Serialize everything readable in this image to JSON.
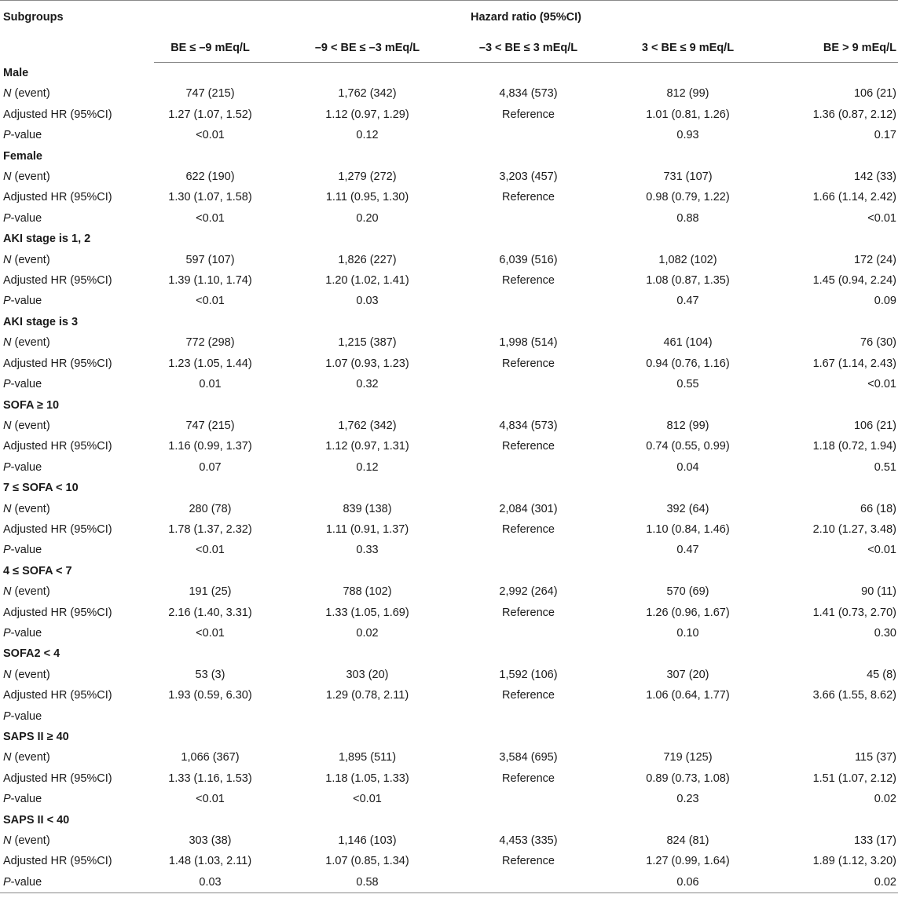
{
  "table": {
    "header": {
      "subgroups": "Subgroups",
      "hazard_ratio": "Hazard ratio (95%CI)",
      "columns": [
        "BE ≤ –9 mEq/L",
        "–9 < BE ≤ –3 mEq/L",
        "–3 < BE ≤ 3 mEq/L",
        "3 < BE ≤ 9 mEq/L",
        "BE > 9 mEq/L"
      ]
    },
    "row_labels": {
      "n_event_italic": "N",
      "n_event_rest": " (event)",
      "adjusted": "Adjusted HR (95%CI)",
      "p_italic": "P",
      "p_rest": "-value"
    },
    "groups": [
      {
        "name": "Male",
        "n": [
          "747 (215)",
          "1,762 (342)",
          "4,834 (573)",
          "812 (99)",
          "106 (21)"
        ],
        "hr": [
          "1.27 (1.07, 1.52)",
          "1.12 (0.97, 1.29)",
          "Reference",
          "1.01 (0.81, 1.26)",
          "1.36 (0.87, 2.12)"
        ],
        "p": [
          "<0.01",
          "0.12",
          "",
          "0.93",
          "0.17"
        ]
      },
      {
        "name": "Female",
        "n": [
          "622 (190)",
          "1,279 (272)",
          "3,203 (457)",
          "731 (107)",
          "142 (33)"
        ],
        "hr": [
          "1.30 (1.07, 1.58)",
          "1.11 (0.95, 1.30)",
          "Reference",
          "0.98 (0.79, 1.22)",
          "1.66 (1.14, 2.42)"
        ],
        "p": [
          "<0.01",
          "0.20",
          "",
          "0.88",
          "<0.01"
        ]
      },
      {
        "name": "AKI stage is 1, 2",
        "n": [
          "597 (107)",
          "1,826 (227)",
          "6,039 (516)",
          "1,082 (102)",
          "172 (24)"
        ],
        "hr": [
          "1.39 (1.10, 1.74)",
          "1.20 (1.02, 1.41)",
          "Reference",
          "1.08 (0.87, 1.35)",
          "1.45 (0.94, 2.24)"
        ],
        "p": [
          "<0.01",
          "0.03",
          "",
          "0.47",
          "0.09"
        ]
      },
      {
        "name": "AKI stage is 3",
        "n": [
          "772 (298)",
          "1,215 (387)",
          "1,998 (514)",
          "461 (104)",
          "76 (30)"
        ],
        "hr": [
          "1.23 (1.05, 1.44)",
          "1.07 (0.93, 1.23)",
          "Reference",
          "0.94 (0.76, 1.16)",
          "1.67 (1.14, 2.43)"
        ],
        "p": [
          "0.01",
          "0.32",
          "",
          "0.55",
          "<0.01"
        ]
      },
      {
        "name": "SOFA ≥ 10",
        "n": [
          "747 (215)",
          "1,762 (342)",
          "4,834 (573)",
          "812 (99)",
          "106 (21)"
        ],
        "hr": [
          "1.16 (0.99, 1.37)",
          "1.12 (0.97, 1.31)",
          "Reference",
          "0.74 (0.55, 0.99)",
          "1.18 (0.72, 1.94)"
        ],
        "p": [
          "0.07",
          "0.12",
          "",
          "0.04",
          "0.51"
        ]
      },
      {
        "name": "7 ≤ SOFA < 10",
        "n": [
          "280 (78)",
          "839 (138)",
          "2,084 (301)",
          "392 (64)",
          "66 (18)"
        ],
        "hr": [
          "1.78 (1.37, 2.32)",
          "1.11 (0.91, 1.37)",
          "Reference",
          "1.10 (0.84, 1.46)",
          "2.10 (1.27, 3.48)"
        ],
        "p": [
          "<0.01",
          "0.33",
          "",
          "0.47",
          "<0.01"
        ]
      },
      {
        "name": "4 ≤ SOFA < 7",
        "n": [
          "191 (25)",
          "788 (102)",
          "2,992 (264)",
          "570 (69)",
          "90 (11)"
        ],
        "hr": [
          "2.16 (1.40, 3.31)",
          "1.33 (1.05, 1.69)",
          "Reference",
          "1.26 (0.96, 1.67)",
          "1.41 (0.73, 2.70)"
        ],
        "p": [
          "<0.01",
          "0.02",
          "",
          "0.10",
          "0.30"
        ]
      },
      {
        "name": "SOFA2 < 4",
        "n": [
          "53 (3)",
          "303 (20)",
          "1,592 (106)",
          "307 (20)",
          "45 (8)"
        ],
        "hr": [
          "1.93 (0.59, 6.30)",
          "1.29 (0.78, 2.11)",
          "Reference",
          "1.06 (0.64, 1.77)",
          "3.66 (1.55, 8.62)"
        ],
        "p": [
          "",
          "",
          "",
          "",
          ""
        ]
      },
      {
        "name": "SAPS II ≥ 40",
        "n": [
          "1,066 (367)",
          "1,895 (511)",
          "3,584 (695)",
          "719 (125)",
          "115 (37)"
        ],
        "hr": [
          "1.33 (1.16, 1.53)",
          "1.18 (1.05, 1.33)",
          "Reference",
          "0.89 (0.73, 1.08)",
          "1.51 (1.07, 2.12)"
        ],
        "p": [
          "<0.01",
          "<0.01",
          "",
          "0.23",
          "0.02"
        ]
      },
      {
        "name": "SAPS II < 40",
        "n": [
          "303 (38)",
          "1,146 (103)",
          "4,453 (335)",
          "824 (81)",
          "133 (17)"
        ],
        "hr": [
          "1.48 (1.03, 2.11)",
          "1.07 (0.85, 1.34)",
          "Reference",
          "1.27 (0.99, 1.64)",
          "1.89 (1.12, 3.20)"
        ],
        "p": [
          "0.03",
          "0.58",
          "",
          "0.06",
          "0.02"
        ]
      }
    ]
  }
}
